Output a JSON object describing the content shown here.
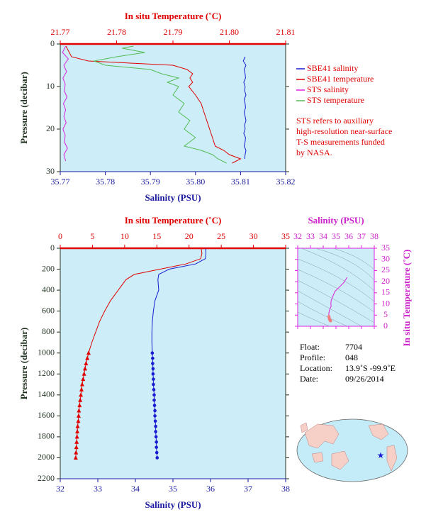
{
  "chart_data": [
    {
      "type": "profile",
      "title": "In situ Temperature (˚C)",
      "xlabel": "Salinity (PSU)",
      "ylabel": "Pressure (decibar)",
      "xlim": [
        35.77,
        35.82
      ],
      "xticks": [
        35.77,
        35.78,
        35.79,
        {
          "value": 35.8,
          "label": "35.80"
        },
        35.81,
        35.82
      ],
      "x2lim": [
        21.77,
        21.81
      ],
      "x2ticks": [
        21.77,
        21.78,
        21.79,
        {
          "value": 21.8,
          "label": "21.80"
        },
        21.81
      ],
      "ylim": [
        0,
        30
      ],
      "yticks": [
        0,
        10,
        20,
        30
      ],
      "y_inverted": true,
      "series": [
        {
          "name": "SBE41 salinity",
          "color": "#1a1ad0",
          "axis": "x",
          "pressure": [
            3,
            4,
            5,
            6,
            7,
            8,
            9,
            10,
            11,
            12,
            13,
            14,
            15,
            16,
            17,
            18,
            19,
            20,
            21,
            22,
            23,
            24,
            25,
            26,
            27
          ],
          "values": [
            35.811,
            35.8106,
            35.8112,
            35.8108,
            35.811,
            35.8111,
            35.8107,
            35.811,
            35.8109,
            35.8112,
            35.8108,
            35.811,
            35.8111,
            35.8108,
            35.811,
            35.8112,
            35.8109,
            35.811,
            35.8107,
            35.8111,
            35.811,
            35.8108,
            35.8112,
            35.811,
            35.8109
          ]
        },
        {
          "name": "SBE41 temperature",
          "color": "#e00000",
          "axis": "x2",
          "pressure": [
            0.5,
            3,
            4,
            5,
            6,
            7,
            8,
            9,
            10,
            12,
            14,
            16,
            18,
            20,
            22,
            24,
            25,
            26,
            27,
            28
          ],
          "values": [
            21.771,
            21.772,
            21.775,
            21.79,
            21.7925,
            21.7935,
            21.793,
            21.7935,
            21.7928,
            21.794,
            21.795,
            21.7955,
            21.796,
            21.7965,
            21.797,
            21.7975,
            21.799,
            21.8,
            21.802,
            21.8005
          ]
        },
        {
          "name": "STS salinity",
          "color": "#dd22dd",
          "axis": "x",
          "pressure": [
            0.5,
            2,
            3.5,
            5,
            6.5,
            8,
            9.5,
            11,
            12.5,
            14,
            15.5,
            17,
            18.5,
            20,
            21.5,
            23,
            24.5,
            26,
            27.5
          ],
          "values": [
            35.7712,
            35.7705,
            35.7718,
            35.7708,
            35.7714,
            35.7706,
            35.7711,
            35.7709,
            35.7715,
            35.7707,
            35.7712,
            35.7708,
            35.7713,
            35.7706,
            35.7711,
            35.7709,
            35.7716,
            35.7708,
            35.7712
          ]
        },
        {
          "name": "STS temperature",
          "color": "#55bb55",
          "axis": "x2",
          "pressure": [
            0.5,
            1,
            2,
            3,
            4,
            5,
            6,
            7,
            8,
            9,
            10,
            12,
            14,
            16,
            18,
            20,
            22,
            24,
            25,
            26,
            27,
            28
          ],
          "values": [
            21.783,
            21.781,
            21.785,
            21.78,
            21.776,
            21.778,
            21.786,
            21.788,
            21.791,
            21.789,
            21.791,
            21.79,
            21.792,
            21.791,
            21.793,
            21.792,
            21.794,
            21.792,
            21.795,
            21.797,
            21.798,
            21.7995
          ]
        }
      ],
      "note": [
        "STS refers to auxiliary",
        "high-resolution near-surface",
        "T-S measurements funded",
        "by NASA."
      ]
    },
    {
      "type": "profile",
      "title": "In situ Temperature (˚C)",
      "xlabel": "Salinity (PSU)",
      "ylabel": "Pressure (decibar)",
      "xlim": [
        32,
        38
      ],
      "xticks": [
        32,
        33,
        34,
        35,
        36,
        37,
        38
      ],
      "x2lim": [
        0,
        35
      ],
      "x2ticks": [
        0,
        5,
        10,
        15,
        20,
        25,
        30,
        35
      ],
      "ylim": [
        0,
        2200
      ],
      "yticks": [
        0,
        200,
        400,
        600,
        800,
        1000,
        1200,
        1400,
        1600,
        1800,
        2000,
        2200
      ],
      "y_inverted": true,
      "series": [
        {
          "color": "#1a1ad0",
          "axis": "x",
          "pressure": [
            5,
            50,
            100,
            150,
            200,
            250,
            300,
            400,
            500,
            600,
            700,
            800,
            900,
            1000
          ],
          "values": [
            35.87,
            35.88,
            35.86,
            35.6,
            34.9,
            34.62,
            34.6,
            34.62,
            34.52,
            34.48,
            34.45,
            34.44,
            34.44,
            34.45
          ]
        },
        {
          "color": "#e00000",
          "axis": "x2",
          "pressure": [
            5,
            50,
            100,
            150,
            200,
            250,
            300,
            400,
            500,
            600,
            700,
            800,
            900,
            1000
          ],
          "values": [
            21.9,
            22.0,
            21.8,
            19.5,
            15.5,
            11.5,
            10.2,
            9.0,
            7.8,
            6.9,
            6.1,
            5.5,
            4.9,
            4.4
          ]
        },
        {
          "color": "#1a1ad0",
          "axis": "x",
          "marker": "circle",
          "pressure": [
            1000,
            1050,
            1100,
            1150,
            1200,
            1250,
            1300,
            1350,
            1400,
            1450,
            1500,
            1550,
            1600,
            1650,
            1700,
            1750,
            1800,
            1850,
            1900,
            1950,
            2000
          ],
          "values": [
            34.45,
            34.46,
            34.46,
            34.47,
            34.47,
            34.48,
            34.48,
            34.49,
            34.5,
            34.5,
            34.51,
            34.52,
            34.52,
            34.53,
            34.54,
            34.54,
            34.55,
            34.56,
            34.56,
            34.57,
            34.58
          ]
        },
        {
          "color": "#e00000",
          "axis": "x2",
          "marker": "triangle",
          "pressure": [
            1000,
            1050,
            1100,
            1150,
            1200,
            1250,
            1300,
            1350,
            1400,
            1450,
            1500,
            1550,
            1600,
            1650,
            1700,
            1750,
            1800,
            1850,
            1900,
            1950,
            2000
          ],
          "values": [
            4.4,
            4.2,
            4.0,
            3.85,
            3.7,
            3.55,
            3.4,
            3.3,
            3.2,
            3.1,
            3.0,
            2.9,
            2.85,
            2.8,
            2.7,
            2.65,
            2.6,
            2.55,
            2.5,
            2.45,
            2.4
          ]
        }
      ]
    },
    {
      "type": "ts",
      "title": "Salinity (PSU)",
      "ylabel": "In situ Temperature (˚C)",
      "color": "#dd22dd",
      "marker_color": "#f08080",
      "xlim": [
        32,
        38
      ],
      "xticks": [
        32,
        33,
        34,
        35,
        36,
        37,
        38
      ],
      "ylim": [
        0,
        35
      ],
      "yticks": [
        0,
        5,
        10,
        15,
        20,
        25,
        30,
        35
      ]
    }
  ],
  "info": [
    {
      "label": "Float:",
      "value": "7704"
    },
    {
      "label": "Profile:",
      "value": "048"
    },
    {
      "label": "Location:",
      "value": "13.9˚S  -99.9˚E"
    },
    {
      "label": "Date:",
      "value": "09/26/2014"
    }
  ]
}
